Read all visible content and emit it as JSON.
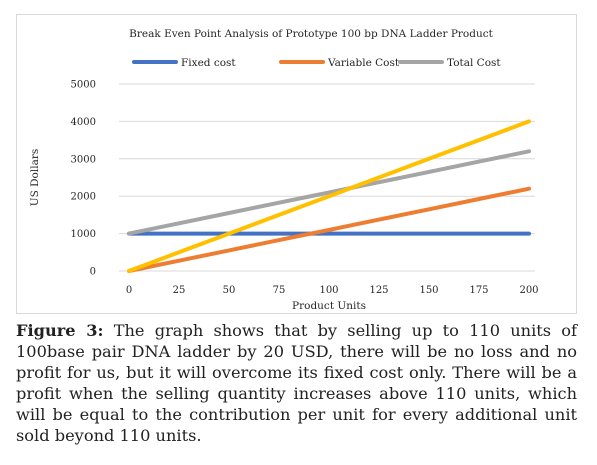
{
  "chart_data": {
    "type": "line",
    "title": "Break Even Point Analysis of Prototype 100 bp DNA Ladder Product",
    "xlabel": "Product Units",
    "ylabel": "US Dollars",
    "x": [
      0,
      25,
      50,
      75,
      100,
      125,
      150,
      175,
      200
    ],
    "x_tick_labels": [
      "0",
      "25",
      "50",
      "75",
      "100",
      "125",
      "150",
      "175",
      "200"
    ],
    "ylim": [
      0,
      5000
    ],
    "y_ticks": [
      0,
      1000,
      2000,
      3000,
      4000,
      5000
    ],
    "y_tick_labels": [
      "0",
      "1000",
      "2000",
      "3000",
      "4000",
      "5000"
    ],
    "grid": "horizontal",
    "legend_position": "top",
    "series": [
      {
        "name": "Fixed cost",
        "color": "#4472c4",
        "values": [
          1000,
          1000,
          1000,
          1000,
          1000,
          1000,
          1000,
          1000,
          1000
        ]
      },
      {
        "name": "Variable Cost",
        "color": "#ed7d31",
        "values": [
          0,
          275,
          550,
          825,
          1100,
          1375,
          1650,
          1925,
          2200
        ]
      },
      {
        "name": "Total Cost",
        "color": "#a5a5a5",
        "values": [
          1000,
          1275,
          1550,
          1825,
          2100,
          2375,
          2650,
          2925,
          3200
        ]
      },
      {
        "name": "",
        "color": "#ffc000",
        "values": [
          0,
          500,
          1000,
          1500,
          2000,
          2500,
          3000,
          3500,
          4000
        ]
      }
    ]
  },
  "caption": {
    "label": "Figure 3:",
    "text": "The graph shows that by selling up to 110 units of 100base pair DNA ladder by 20 USD, there will be no loss and no profit for us, but it will overcome its fixed cost only. There will be a profit when the selling quantity increases above 110 units, which will be equal to the contribution per unit for every additional unit sold beyond 110 units."
  }
}
